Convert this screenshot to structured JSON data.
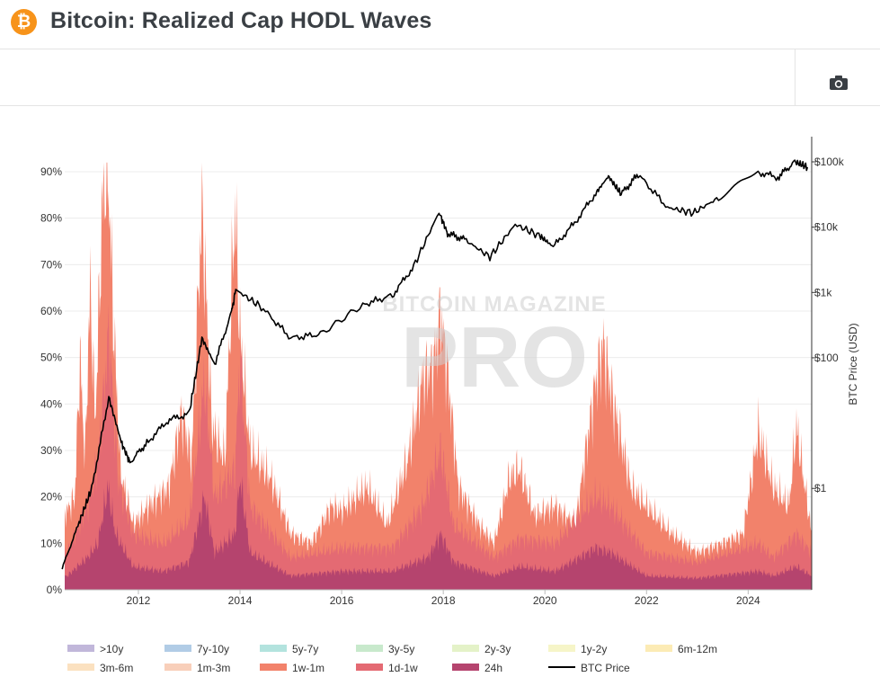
{
  "header": {
    "title": "Bitcoin: Realized Cap HODL Waves",
    "logo_glyph": "₿",
    "logo_color": "#f7931a"
  },
  "toolbar": {
    "camera_icon": "camera-icon"
  },
  "watermark": {
    "line1": "BITCOIN MAGAZINE",
    "line2": "PRO"
  },
  "chart_data": {
    "type": "area",
    "title": "Bitcoin: Realized Cap HODL Waves",
    "y_left": {
      "ticks": [
        "0%",
        "10%",
        "20%",
        "30%",
        "40%",
        "50%",
        "60%",
        "70%",
        "80%",
        "90%"
      ],
      "range": [
        0,
        92
      ]
    },
    "y_right": {
      "label": "BTC Price (USD)",
      "scale": "log",
      "ticks": [
        {
          "label": "$1",
          "value": 1
        },
        {
          "label": "$100",
          "value": 100
        },
        {
          "label": "$1k",
          "value": 1000
        },
        {
          "label": "$10k",
          "value": 10000
        },
        {
          "label": "$100k",
          "value": 100000
        }
      ]
    },
    "x_axis": {
      "ticks": [
        "2012",
        "2014",
        "2016",
        "2018",
        "2020",
        "2022",
        "2024"
      ],
      "range": [
        "2010-07",
        "2025-03"
      ]
    },
    "grid": true,
    "legend_position": "bottom",
    "stacked_bands": [
      {
        "name": "24h",
        "color": "#b5446e",
        "points": [
          [
            2010.6,
            3
          ],
          [
            2011.0,
            7
          ],
          [
            2011.2,
            10
          ],
          [
            2011.4,
            22
          ],
          [
            2011.55,
            12
          ],
          [
            2011.9,
            5
          ],
          [
            2012.5,
            4
          ],
          [
            2013.0,
            6
          ],
          [
            2013.3,
            20
          ],
          [
            2013.5,
            8
          ],
          [
            2013.9,
            12
          ],
          [
            2014.0,
            24
          ],
          [
            2014.2,
            8
          ],
          [
            2015.0,
            3
          ],
          [
            2016.0,
            4
          ],
          [
            2017.0,
            4
          ],
          [
            2017.7,
            7
          ],
          [
            2017.95,
            12
          ],
          [
            2018.2,
            6
          ],
          [
            2019.0,
            3
          ],
          [
            2019.5,
            5
          ],
          [
            2020.2,
            4
          ],
          [
            2021.0,
            9
          ],
          [
            2021.3,
            8
          ],
          [
            2022.0,
            3
          ],
          [
            2023.0,
            2.5
          ],
          [
            2024.2,
            4
          ],
          [
            2024.5,
            3
          ],
          [
            2024.95,
            5
          ],
          [
            2025.25,
            3
          ]
        ]
      },
      {
        "name": "1d-1w",
        "color": "#e46a73",
        "points": [
          [
            2010.6,
            8
          ],
          [
            2011.0,
            18
          ],
          [
            2011.2,
            28
          ],
          [
            2011.42,
            55
          ],
          [
            2011.6,
            24
          ],
          [
            2011.9,
            12
          ],
          [
            2012.5,
            10
          ],
          [
            2013.0,
            15
          ],
          [
            2013.3,
            45
          ],
          [
            2013.5,
            20
          ],
          [
            2013.9,
            26
          ],
          [
            2014.0,
            50
          ],
          [
            2014.2,
            18
          ],
          [
            2015.0,
            7
          ],
          [
            2016.0,
            9
          ],
          [
            2017.0,
            9
          ],
          [
            2017.6,
            18
          ],
          [
            2017.95,
            30
          ],
          [
            2018.2,
            14
          ],
          [
            2019.0,
            7
          ],
          [
            2019.5,
            11
          ],
          [
            2020.2,
            10
          ],
          [
            2021.0,
            20
          ],
          [
            2021.3,
            18
          ],
          [
            2022.0,
            8
          ],
          [
            2023.0,
            6
          ],
          [
            2024.2,
            10
          ],
          [
            2024.5,
            7
          ],
          [
            2024.95,
            12
          ],
          [
            2025.25,
            8
          ]
        ]
      },
      {
        "name": "1w-1m",
        "color": "#f2826b",
        "points": [
          [
            2010.6,
            17
          ],
          [
            2010.75,
            20
          ],
          [
            2010.85,
            50
          ],
          [
            2010.95,
            28
          ],
          [
            2011.05,
            65
          ],
          [
            2011.15,
            36
          ],
          [
            2011.3,
            85
          ],
          [
            2011.4,
            92
          ],
          [
            2011.5,
            60
          ],
          [
            2011.65,
            25
          ],
          [
            2011.9,
            14
          ],
          [
            2012.2,
            18
          ],
          [
            2012.6,
            22
          ],
          [
            2012.85,
            38
          ],
          [
            2013.05,
            28
          ],
          [
            2013.25,
            83
          ],
          [
            2013.45,
            35
          ],
          [
            2013.7,
            28
          ],
          [
            2013.9,
            82
          ],
          [
            2014.0,
            55
          ],
          [
            2014.2,
            30
          ],
          [
            2014.6,
            24
          ],
          [
            2015.0,
            12
          ],
          [
            2015.4,
            10
          ],
          [
            2015.8,
            18
          ],
          [
            2016.0,
            17
          ],
          [
            2016.5,
            22
          ],
          [
            2016.9,
            14
          ],
          [
            2017.3,
            28
          ],
          [
            2017.6,
            46
          ],
          [
            2017.8,
            48
          ],
          [
            2017.95,
            60
          ],
          [
            2018.1,
            45
          ],
          [
            2018.3,
            22
          ],
          [
            2018.7,
            14
          ],
          [
            2019.0,
            10
          ],
          [
            2019.3,
            24
          ],
          [
            2019.5,
            26
          ],
          [
            2019.8,
            16
          ],
          [
            2020.2,
            18
          ],
          [
            2020.6,
            14
          ],
          [
            2021.0,
            45
          ],
          [
            2021.15,
            53
          ],
          [
            2021.35,
            40
          ],
          [
            2021.7,
            22
          ],
          [
            2022.0,
            18
          ],
          [
            2022.5,
            12
          ],
          [
            2023.0,
            8
          ],
          [
            2023.5,
            10
          ],
          [
            2023.9,
            12
          ],
          [
            2024.2,
            34
          ],
          [
            2024.5,
            22
          ],
          [
            2024.8,
            18
          ],
          [
            2024.95,
            35
          ],
          [
            2025.25,
            12
          ]
        ]
      }
    ],
    "series": [
      {
        "name": "BTC Price",
        "color": "#000000",
        "points": [
          [
            "2010-07",
            0.06
          ],
          [
            "2010-11",
            0.3
          ],
          [
            "2011-02",
            1
          ],
          [
            "2011-06",
            25
          ],
          [
            "2011-09",
            5
          ],
          [
            "2011-11",
            2.5
          ],
          [
            "2012-03",
            5
          ],
          [
            "2012-08",
            11
          ],
          [
            "2013-01",
            14
          ],
          [
            "2013-04",
            200
          ],
          [
            "2013-07",
            80
          ],
          [
            "2013-11",
            500
          ],
          [
            "2013-12",
            1100
          ],
          [
            "2014-06",
            600
          ],
          [
            "2015-01",
            200
          ],
          [
            "2015-08",
            230
          ],
          [
            "2016-06",
            650
          ],
          [
            "2017-01",
            900
          ],
          [
            "2017-06",
            2500
          ],
          [
            "2017-12",
            17000
          ],
          [
            "2018-02",
            8000
          ],
          [
            "2018-06",
            6500
          ],
          [
            "2018-12",
            3500
          ],
          [
            "2019-06",
            11000
          ],
          [
            "2019-12",
            7200
          ],
          [
            "2020-03",
            5000
          ],
          [
            "2020-08",
            11500
          ],
          [
            "2021-01",
            33000
          ],
          [
            "2021-04",
            60000
          ],
          [
            "2021-07",
            32000
          ],
          [
            "2021-11",
            64000
          ],
          [
            "2022-06",
            20000
          ],
          [
            "2022-12",
            16500
          ],
          [
            "2023-06",
            28000
          ],
          [
            "2024-03",
            70000
          ],
          [
            "2024-08",
            58000
          ],
          [
            "2024-12",
            100000
          ],
          [
            "2025-03",
            83000
          ]
        ]
      }
    ],
    "legend": [
      {
        "label": ">10y",
        "color": "#c1b7da"
      },
      {
        "label": "7y-10y",
        "color": "#b1cce6"
      },
      {
        "label": "5y-7y",
        "color": "#b3e3de"
      },
      {
        "label": "3y-5y",
        "color": "#c8e9cc"
      },
      {
        "label": "2y-3y",
        "color": "#e4f2c8"
      },
      {
        "label": "1y-2y",
        "color": "#f6f5c8"
      },
      {
        "label": "6m-12m",
        "color": "#fcebb5"
      },
      {
        "label": "3m-6m",
        "color": "#fbe1c0"
      },
      {
        "label": "1m-3m",
        "color": "#f8cfba"
      },
      {
        "label": "1w-1m",
        "color": "#f2826b"
      },
      {
        "label": "1d-1w",
        "color": "#e46a73"
      },
      {
        "label": "24h",
        "color": "#b5446e"
      },
      {
        "label": "BTC Price",
        "color": "#000000",
        "line": true
      }
    ]
  }
}
